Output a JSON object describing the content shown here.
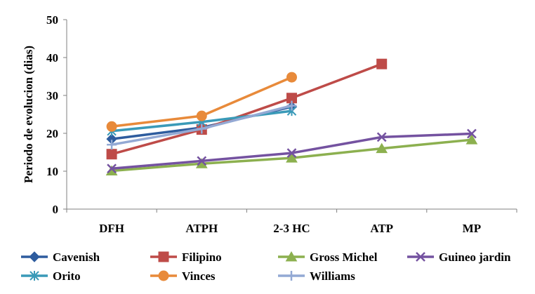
{
  "chart_data": {
    "type": "line",
    "title": "",
    "xlabel": "",
    "ylabel": "Periodo de evolucion (dias)",
    "categories": [
      "DFH",
      "ATPH",
      "2-3 HC",
      "ATP",
      "MP"
    ],
    "ylim": [
      0,
      50
    ],
    "yticks": [
      0,
      10,
      20,
      30,
      40,
      50
    ],
    "grid": false,
    "legend_position": "bottom",
    "series": [
      {
        "name": "Cavenish",
        "color": "#2E5C9E",
        "marker": "diamond",
        "values": [
          18.5,
          21.5,
          27.0,
          null,
          null
        ]
      },
      {
        "name": "Filipino",
        "color": "#BE4B48",
        "marker": "square",
        "values": [
          14.5,
          21.0,
          29.3,
          38.3,
          null
        ]
      },
      {
        "name": "Gross Michel",
        "color": "#8CB04F",
        "marker": "triangle",
        "values": [
          10.1,
          12.0,
          13.5,
          16.0,
          18.3
        ]
      },
      {
        "name": "Guineo jardin",
        "color": "#7452A0",
        "marker": "x",
        "values": [
          10.7,
          12.7,
          14.8,
          19.0,
          19.9
        ]
      },
      {
        "name": "Orito",
        "color": "#3A9AB8",
        "marker": "asterisk",
        "values": [
          20.6,
          23.0,
          25.9,
          null,
          null
        ]
      },
      {
        "name": "Vinces",
        "color": "#E88A3A",
        "marker": "circle",
        "values": [
          21.8,
          24.6,
          34.8,
          null,
          null
        ]
      },
      {
        "name": "Williams",
        "color": "#93A9D4",
        "marker": "plus",
        "values": [
          17.0,
          21.2,
          27.3,
          null,
          null
        ]
      }
    ]
  }
}
